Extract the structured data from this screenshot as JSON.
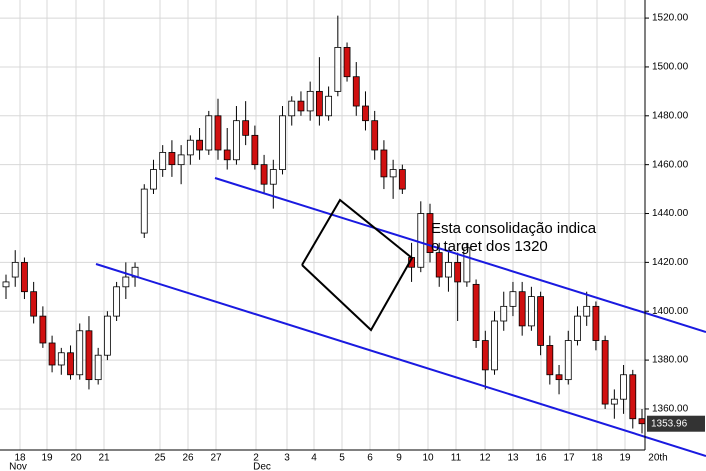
{
  "chart_data": {
    "type": "candlestick",
    "annotation": [
      "Esta consolidação indica",
      "o target dos 1320"
    ],
    "categories": [
      "18",
      "19",
      "20",
      "21",
      "25",
      "26",
      "27",
      "2",
      "3",
      "4",
      "5",
      "6",
      "9",
      "10",
      "11",
      "12",
      "13",
      "16",
      "17",
      "18",
      "19",
      "20th"
    ],
    "months": [
      "Nov",
      "Dec"
    ],
    "up_color": "#ffffff",
    "down_color": "#d01010",
    "grid": true,
    "ylim": [
      1343.2,
      1527.4
    ],
    "yticks": [
      {
        "value": 1360,
        "label": "1360.00"
      },
      {
        "value": 1380,
        "label": "1380.00"
      },
      {
        "value": 1400,
        "label": "1400.00"
      },
      {
        "value": 1420,
        "label": "1420.00"
      },
      {
        "value": 1440,
        "label": "1440.00"
      },
      {
        "value": 1460,
        "label": "1460.00"
      },
      {
        "value": 1480,
        "label": "1480.00"
      },
      {
        "value": 1500,
        "label": "1500.00"
      },
      {
        "value": 1520,
        "label": "1520.00"
      }
    ],
    "open": [
      1410,
      1414,
      1420,
      1408,
      1398,
      1387,
      1378,
      1383,
      1374,
      1392,
      1372,
      1382,
      1398,
      1410,
      1414,
      1432,
      1450,
      1458,
      1465,
      1460,
      1464,
      1470,
      1466,
      1480,
      1466,
      1462,
      1478,
      1472,
      1460,
      1452,
      1458,
      1480,
      1486,
      1482,
      1490,
      1480,
      1490,
      1508,
      1496,
      1484,
      1478,
      1466,
      1455,
      1458,
      1422,
      1418,
      1440,
      1424,
      1414,
      1420,
      1412,
      1411,
      1388,
      1376,
      1396,
      1402,
      1408,
      1394,
      1406,
      1386,
      1374,
      1372,
      1388,
      1398,
      1402,
      1388,
      1362,
      1364,
      1374,
      1356
    ],
    "high": [
      1415,
      1425,
      1422,
      1412,
      1402,
      1390,
      1385,
      1386,
      1395,
      1398,
      1385,
      1400,
      1412,
      1420,
      1420,
      1452,
      1462,
      1468,
      1470,
      1468,
      1472,
      1475,
      1482,
      1487,
      1475,
      1484,
      1486,
      1476,
      1464,
      1462,
      1484,
      1488,
      1490,
      1494,
      1504,
      1492,
      1521,
      1510,
      1502,
      1490,
      1482,
      1470,
      1462,
      1460,
      1428,
      1445,
      1444,
      1428,
      1425,
      1424,
      1428,
      1413,
      1392,
      1400,
      1408,
      1412,
      1412,
      1410,
      1408,
      1390,
      1378,
      1392,
      1402,
      1408,
      1404,
      1390,
      1368,
      1378,
      1376,
      1360
    ],
    "low": [
      1405,
      1410,
      1405,
      1395,
      1385,
      1375,
      1374,
      1372,
      1372,
      1368,
      1370,
      1380,
      1396,
      1405,
      1410,
      1430,
      1448,
      1455,
      1455,
      1452,
      1460,
      1462,
      1464,
      1462,
      1458,
      1460,
      1468,
      1458,
      1448,
      1442,
      1456,
      1476,
      1480,
      1478,
      1476,
      1478,
      1488,
      1494,
      1480,
      1474,
      1462,
      1450,
      1446,
      1448,
      1412,
      1416,
      1420,
      1410,
      1408,
      1396,
      1410,
      1385,
      1368,
      1374,
      1392,
      1398,
      1390,
      1392,
      1382,
      1370,
      1366,
      1370,
      1386,
      1394,
      1384,
      1360,
      1356,
      1358,
      1352,
      1350
    ],
    "close": [
      1412,
      1420,
      1408,
      1398,
      1387,
      1378,
      1383,
      1374,
      1392,
      1372,
      1382,
      1398,
      1410,
      1414,
      1418,
      1450,
      1458,
      1465,
      1460,
      1464,
      1470,
      1466,
      1480,
      1466,
      1462,
      1478,
      1472,
      1460,
      1452,
      1458,
      1480,
      1486,
      1482,
      1490,
      1480,
      1488,
      1508,
      1496,
      1484,
      1478,
      1466,
      1455,
      1458,
      1450,
      1418,
      1440,
      1424,
      1414,
      1420,
      1412,
      1426,
      1388,
      1376,
      1396,
      1402,
      1408,
      1394,
      1406,
      1386,
      1374,
      1372,
      1388,
      1398,
      1402,
      1388,
      1362,
      1364,
      1374,
      1356,
      1353.96
    ]
  }
}
